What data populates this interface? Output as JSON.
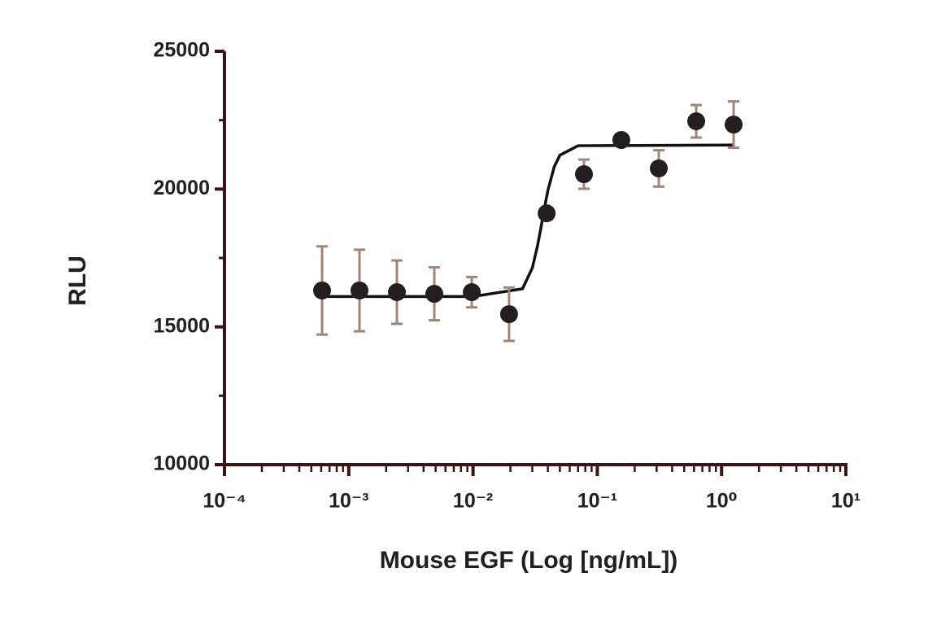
{
  "chart_data": {
    "type": "scatter",
    "x_label": "Mouse EGF (Log [ng/mL])",
    "y_label": "RLU",
    "log_x": true,
    "xlim": [
      0.0001,
      10
    ],
    "xticks": [
      {
        "value": 0.0001,
        "label": "10⁻⁴"
      },
      {
        "value": 0.001,
        "label": "10⁻³"
      },
      {
        "value": 0.01,
        "label": "10⁻²"
      },
      {
        "value": 0.1,
        "label": "10⁻¹"
      },
      {
        "value": 1,
        "label": "10⁰"
      },
      {
        "value": 10,
        "label": "10¹"
      }
    ],
    "ylim": [
      10000,
      25000
    ],
    "yticks": [
      10000,
      15000,
      20000,
      25000
    ],
    "y_minor_ticks": [
      12500,
      17500,
      22500
    ],
    "axis_color": "#3a1416",
    "series": [
      {
        "color": "#231f20",
        "error_color": "#a08676",
        "x": [
          0.00061,
          0.00122,
          0.00244,
          0.00488,
          0.00977,
          0.0195,
          0.0391,
          0.0781,
          0.156,
          0.3125,
          0.625,
          1.25
        ],
        "values": [
          16320,
          16320,
          16260,
          16200,
          16260,
          15460,
          19120,
          20540,
          21780,
          20750,
          22460,
          22340
        ],
        "errors": [
          1600,
          1480,
          1150,
          960,
          550,
          970,
          200,
          530,
          100,
          660,
          590,
          840
        ]
      }
    ],
    "fit": {
      "color": "#111111",
      "x": [
        0.00061,
        0.01,
        0.025,
        0.03,
        0.033,
        0.035,
        0.037,
        0.04,
        0.045,
        0.05,
        0.07,
        1.25
      ],
      "values": [
        16100,
        16100,
        16382,
        17138,
        17930,
        18541,
        19150,
        19946,
        20809,
        21230,
        21573,
        21600
      ]
    }
  }
}
